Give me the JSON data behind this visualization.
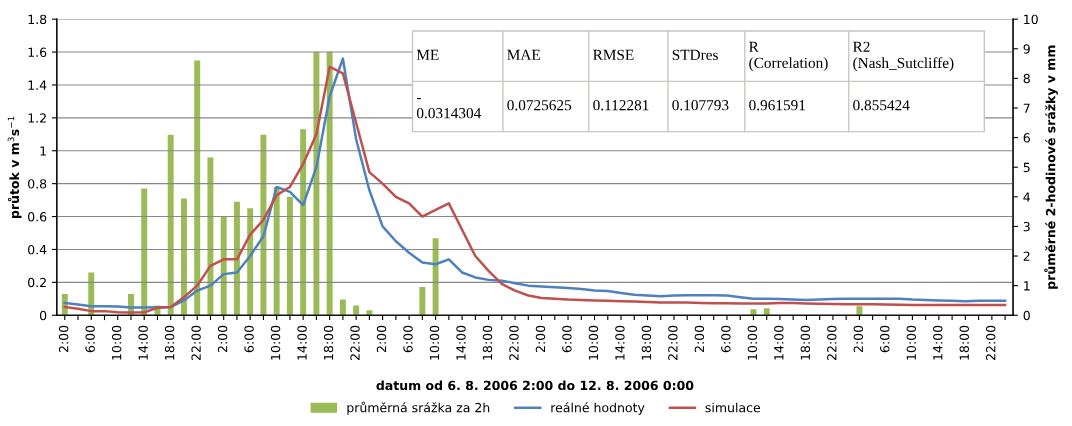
{
  "chart_data": {
    "type": "bar",
    "xlabel": "datum od 6. 8. 2006 2:00 do 12. 8. 2006 0:00",
    "ylabel": "průtok v m$^{3}$s$^{−1}$",
    "y2label": "průměrné 2-hodinové srážky v mm",
    "categories": [
      "2:00",
      null,
      "6:00",
      null,
      "10:00",
      null,
      "14:00",
      null,
      "18:00",
      null,
      "22:00",
      null,
      "2:00",
      null,
      "6:00",
      null,
      "10:00",
      null,
      "14:00",
      null,
      "18:00",
      null,
      "22:00",
      null,
      "2:00",
      null,
      "6:00",
      null,
      "10:00",
      null,
      "14:00",
      null,
      "18:00",
      null,
      "22:00",
      null,
      "2:00",
      null,
      "6:00",
      null,
      "10:00",
      null,
      "14:00",
      null,
      "18:00",
      null,
      "22:00",
      null,
      "2:00",
      null,
      "6:00",
      null,
      "10:00",
      null,
      "14:00",
      null,
      "18:00",
      null,
      "22:00",
      null,
      "2:00",
      null,
      "6:00",
      null,
      "10:00",
      null,
      "14:00",
      null,
      "18:00",
      null,
      "22:00",
      null
    ],
    "series": [
      {
        "name": "průměrná srážka za 2h",
        "axis": "y2",
        "color": "#9bbb59",
        "values": [
          0.72,
          0,
          1.44,
          null,
          0,
          0.72,
          4.28,
          0.33,
          6.1,
          3.94,
          8.6,
          5.33,
          3.33,
          3.83,
          3.61,
          6.1,
          4.33,
          4.0,
          6.28,
          8.9,
          8.9,
          0.53,
          0.33,
          0.17,
          0,
          0,
          0,
          0.95,
          2.6,
          0,
          0,
          0,
          0,
          0,
          0,
          0,
          0,
          0,
          0,
          0,
          0,
          0,
          0,
          0,
          0,
          0,
          0,
          0,
          0,
          0,
          0,
          0,
          0.2,
          0.24,
          0,
          0,
          0,
          0,
          0,
          0,
          0.3,
          null,
          0,
          0,
          0,
          null,
          0,
          0,
          0,
          0,
          0,
          0
        ]
      },
      {
        "name": "reálné hodnoty",
        "type": "line",
        "color": "#4f81bd",
        "values": [
          0.075,
          0.065,
          0.055,
          0.055,
          0.053,
          0.047,
          0.047,
          0.048,
          0.05,
          0.09,
          0.15,
          0.18,
          0.25,
          0.26,
          0.36,
          0.48,
          0.78,
          0.75,
          0.67,
          0.9,
          1.33,
          1.56,
          1.07,
          0.76,
          0.54,
          0.45,
          0.38,
          0.32,
          0.31,
          0.34,
          0.26,
          0.23,
          0.215,
          0.21,
          0.195,
          0.18,
          0.175,
          0.17,
          0.165,
          0.16,
          0.15,
          0.148,
          0.135,
          0.125,
          0.12,
          0.115,
          0.12,
          0.122,
          0.122,
          0.122,
          0.12,
          0.11,
          0.1,
          0.1,
          0.098,
          0.095,
          0.093,
          0.095,
          0.098,
          0.1,
          0.1,
          0.1,
          0.1,
          0.1,
          0.095,
          0.093,
          0.09,
          0.088,
          0.085,
          0.088,
          0.088,
          0.088
        ]
      },
      {
        "name": "simulace",
        "type": "line",
        "color": "#c0504d",
        "values": [
          0.05,
          0.04,
          0.025,
          0.025,
          0.018,
          0.016,
          0.018,
          0.045,
          0.05,
          0.11,
          0.18,
          0.3,
          0.34,
          0.34,
          0.49,
          0.58,
          0.73,
          0.78,
          0.92,
          1.1,
          1.51,
          1.47,
          1.17,
          0.87,
          0.8,
          0.72,
          0.68,
          0.6,
          0.64,
          0.68,
          0.52,
          0.36,
          0.27,
          0.19,
          0.15,
          0.12,
          0.105,
          0.1,
          0.095,
          0.092,
          0.09,
          0.088,
          0.085,
          0.083,
          0.08,
          0.078,
          0.077,
          0.077,
          0.075,
          0.073,
          0.073,
          0.072,
          0.072,
          0.072,
          0.074,
          0.074,
          0.072,
          0.07,
          0.068,
          0.067,
          0.067,
          0.067,
          0.066,
          0.064,
          0.062,
          0.062,
          0.062,
          0.062,
          0.062,
          0.063,
          0.063,
          0.063
        ]
      }
    ],
    "ylim": [
      0,
      1.8
    ],
    "yticks": [
      0,
      0.2,
      0.4,
      0.6,
      0.8,
      1,
      1.2,
      1.4,
      1.6,
      1.8
    ],
    "y2lim": [
      0,
      10
    ],
    "y2ticks": [
      0,
      1,
      2,
      3,
      4,
      5,
      6,
      7,
      8,
      9,
      10
    ],
    "grid": "y",
    "legend": "bottom",
    "annotations": [
      "ME",
      "MAE",
      "RMSE",
      "STDres",
      "R\n(Correlation)",
      "R2\n(Nash_Sutcliffe)",
      "-\n0.0314304",
      "0.0725625",
      "0.112281",
      "0.107793",
      "0.961591",
      "0.855424"
    ]
  }
}
